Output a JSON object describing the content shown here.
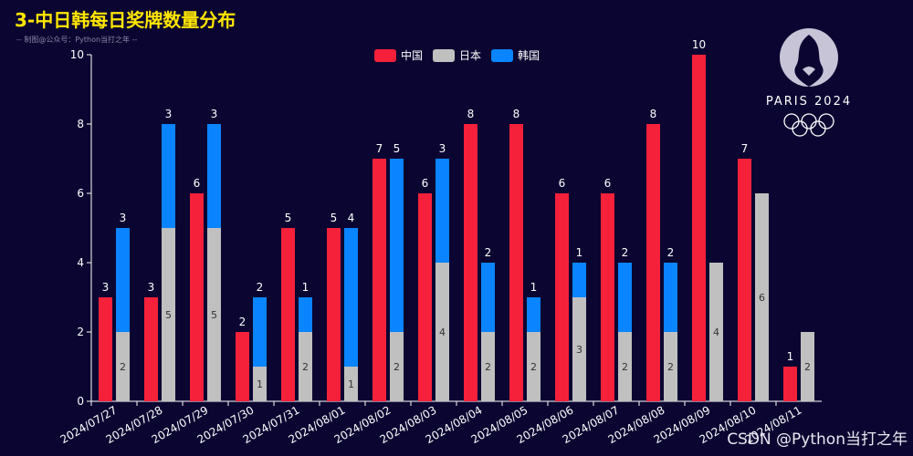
{
  "title": "3-中日韩每日奖牌数量分布",
  "subtitle": "-- 制图@公众号：Python当打之年 --",
  "watermark": "CSDN @Python当打之年",
  "logo": {
    "text": "PARIS 2024"
  },
  "colors": {
    "background": "#0b0631",
    "china": "#f5203a",
    "japan": "#c0c0c0",
    "korea": "#0a84ff",
    "title": "#ffe600",
    "axis": "#ffffff"
  },
  "chart_data": {
    "type": "bar",
    "categories": [
      "2024/07/27",
      "2024/07/28",
      "2024/07/29",
      "2024/07/30",
      "2024/07/31",
      "2024/08/01",
      "2024/08/02",
      "2024/08/03",
      "2024/08/04",
      "2024/08/05",
      "2024/08/06",
      "2024/08/07",
      "2024/08/08",
      "2024/08/09",
      "2024/08/10",
      "2024/08/11"
    ],
    "ylim": [
      0,
      10
    ],
    "yticks": [
      0,
      2,
      4,
      6,
      8,
      10
    ],
    "legend_position": "top-center",
    "series": [
      {
        "name": "中国",
        "stack": "cn",
        "values": [
          3,
          3,
          6,
          2,
          5,
          5,
          7,
          6,
          8,
          8,
          6,
          6,
          8,
          10,
          7,
          1
        ]
      },
      {
        "name": "日本",
        "stack": "jk",
        "values": [
          2,
          5,
          5,
          1,
          2,
          1,
          2,
          4,
          2,
          2,
          3,
          2,
          2,
          4,
          6,
          2
        ]
      },
      {
        "name": "韩国",
        "stack": "jk",
        "values": [
          3,
          3,
          3,
          2,
          1,
          4,
          5,
          3,
          2,
          1,
          1,
          2,
          2,
          null,
          null,
          null
        ]
      }
    ]
  }
}
